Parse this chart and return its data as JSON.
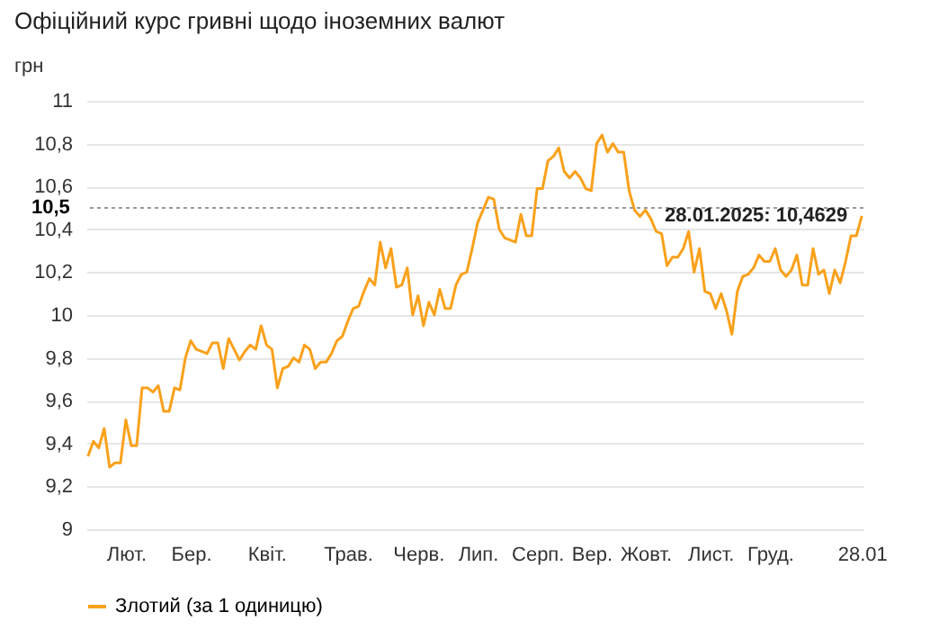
{
  "chart_data": {
    "type": "line",
    "title": "Офіційний курс гривні щодо іноземних валют",
    "ylabel": "грн",
    "categories": [
      null,
      null,
      null,
      null,
      null,
      null,
      null,
      "Лют.",
      null,
      null,
      null,
      null,
      null,
      null,
      null,
      null,
      null,
      null,
      null,
      "Бер.",
      null,
      null,
      null,
      null,
      null,
      null,
      null,
      null,
      null,
      null,
      null,
      null,
      null,
      "Квіт.",
      null,
      null,
      null,
      null,
      null,
      null,
      null,
      null,
      null,
      null,
      null,
      null,
      null,
      null,
      "Трав.",
      null,
      null,
      null,
      null,
      null,
      null,
      null,
      null,
      null,
      null,
      null,
      null,
      "Черв.",
      null,
      null,
      null,
      null,
      null,
      null,
      null,
      null,
      null,
      null,
      "Лип.",
      null,
      null,
      null,
      null,
      null,
      null,
      null,
      null,
      null,
      null,
      "Серп.",
      null,
      null,
      null,
      null,
      null,
      null,
      null,
      null,
      null,
      "Вер.",
      null,
      null,
      null,
      null,
      null,
      null,
      null,
      null,
      null,
      "Жовт.",
      null,
      null,
      null,
      null,
      null,
      null,
      null,
      null,
      null,
      null,
      null,
      "Лист.",
      null,
      null,
      null,
      null,
      null,
      null,
      null,
      null,
      null,
      null,
      "Груд.",
      null,
      null,
      null,
      null,
      null,
      null,
      null,
      null,
      null,
      null,
      null,
      null,
      null,
      null,
      null,
      null,
      "28.01"
    ],
    "series": [
      {
        "name": "Злотий (за 1 одиницю)",
        "color": "#f9a11b",
        "values": [
          9.34,
          9.41,
          9.38,
          9.47,
          9.29,
          9.31,
          9.31,
          9.51,
          9.39,
          9.39,
          9.66,
          9.66,
          9.64,
          9.67,
          9.55,
          9.55,
          9.66,
          9.65,
          9.8,
          9.88,
          9.84,
          9.83,
          9.82,
          9.87,
          9.87,
          9.75,
          9.89,
          9.84,
          9.79,
          9.83,
          9.86,
          9.84,
          9.95,
          9.86,
          9.84,
          9.66,
          9.75,
          9.76,
          9.8,
          9.78,
          9.86,
          9.84,
          9.75,
          9.78,
          9.78,
          9.82,
          9.88,
          9.9,
          9.97,
          10.03,
          10.04,
          10.11,
          10.17,
          10.14,
          10.34,
          10.22,
          10.31,
          10.13,
          10.14,
          10.22,
          10.0,
          10.09,
          9.95,
          10.06,
          10.0,
          10.12,
          10.03,
          10.03,
          10.14,
          10.19,
          10.2,
          10.31,
          10.43,
          10.49,
          10.55,
          10.54,
          10.4,
          10.36,
          10.35,
          10.34,
          10.47,
          10.37,
          10.37,
          10.59,
          10.59,
          10.72,
          10.74,
          10.78,
          10.67,
          10.64,
          10.67,
          10.64,
          10.59,
          10.58,
          10.8,
          10.84,
          10.76,
          10.8,
          10.76,
          10.76,
          10.58,
          10.49,
          10.46,
          10.49,
          10.45,
          10.39,
          10.38,
          10.23,
          10.27,
          10.27,
          10.31,
          10.39,
          10.2,
          10.31,
          10.11,
          10.1,
          10.03,
          10.1,
          10.02,
          9.91,
          10.11,
          10.18,
          10.19,
          10.22,
          10.28,
          10.25,
          10.25,
          10.31,
          10.21,
          10.18,
          10.21,
          10.28,
          10.14,
          10.14,
          10.31,
          10.19,
          10.21,
          10.1,
          10.21,
          10.15,
          10.25,
          10.37,
          10.37,
          10.4629
        ]
      }
    ],
    "ylim": [
      9,
      11
    ],
    "yticks": [
      {
        "value": 9,
        "label": "9"
      },
      {
        "value": 9.2,
        "label": "9,2"
      },
      {
        "value": 9.4,
        "label": "9,4"
      },
      {
        "value": 9.6,
        "label": "9,6"
      },
      {
        "value": 9.8,
        "label": "9,8"
      },
      {
        "value": 10,
        "label": "10"
      },
      {
        "value": 10.2,
        "label": "10,2"
      },
      {
        "value": 10.4,
        "label": "10,4"
      },
      {
        "value": 10.6,
        "label": "10,6"
      },
      {
        "value": 10.8,
        "label": "10,8"
      },
      {
        "value": 11,
        "label": "11"
      }
    ],
    "ref_lines": [
      {
        "axis": "y",
        "value": 10.5,
        "label": "10,5",
        "line_style": "dotted"
      }
    ],
    "annotations": [
      {
        "text": "28.01.2025: 10,4629",
        "x": "28.01",
        "y": 10.4629
      }
    ],
    "grid": "y",
    "legend": "bottom",
    "marker": "none",
    "line_style": "solid"
  }
}
